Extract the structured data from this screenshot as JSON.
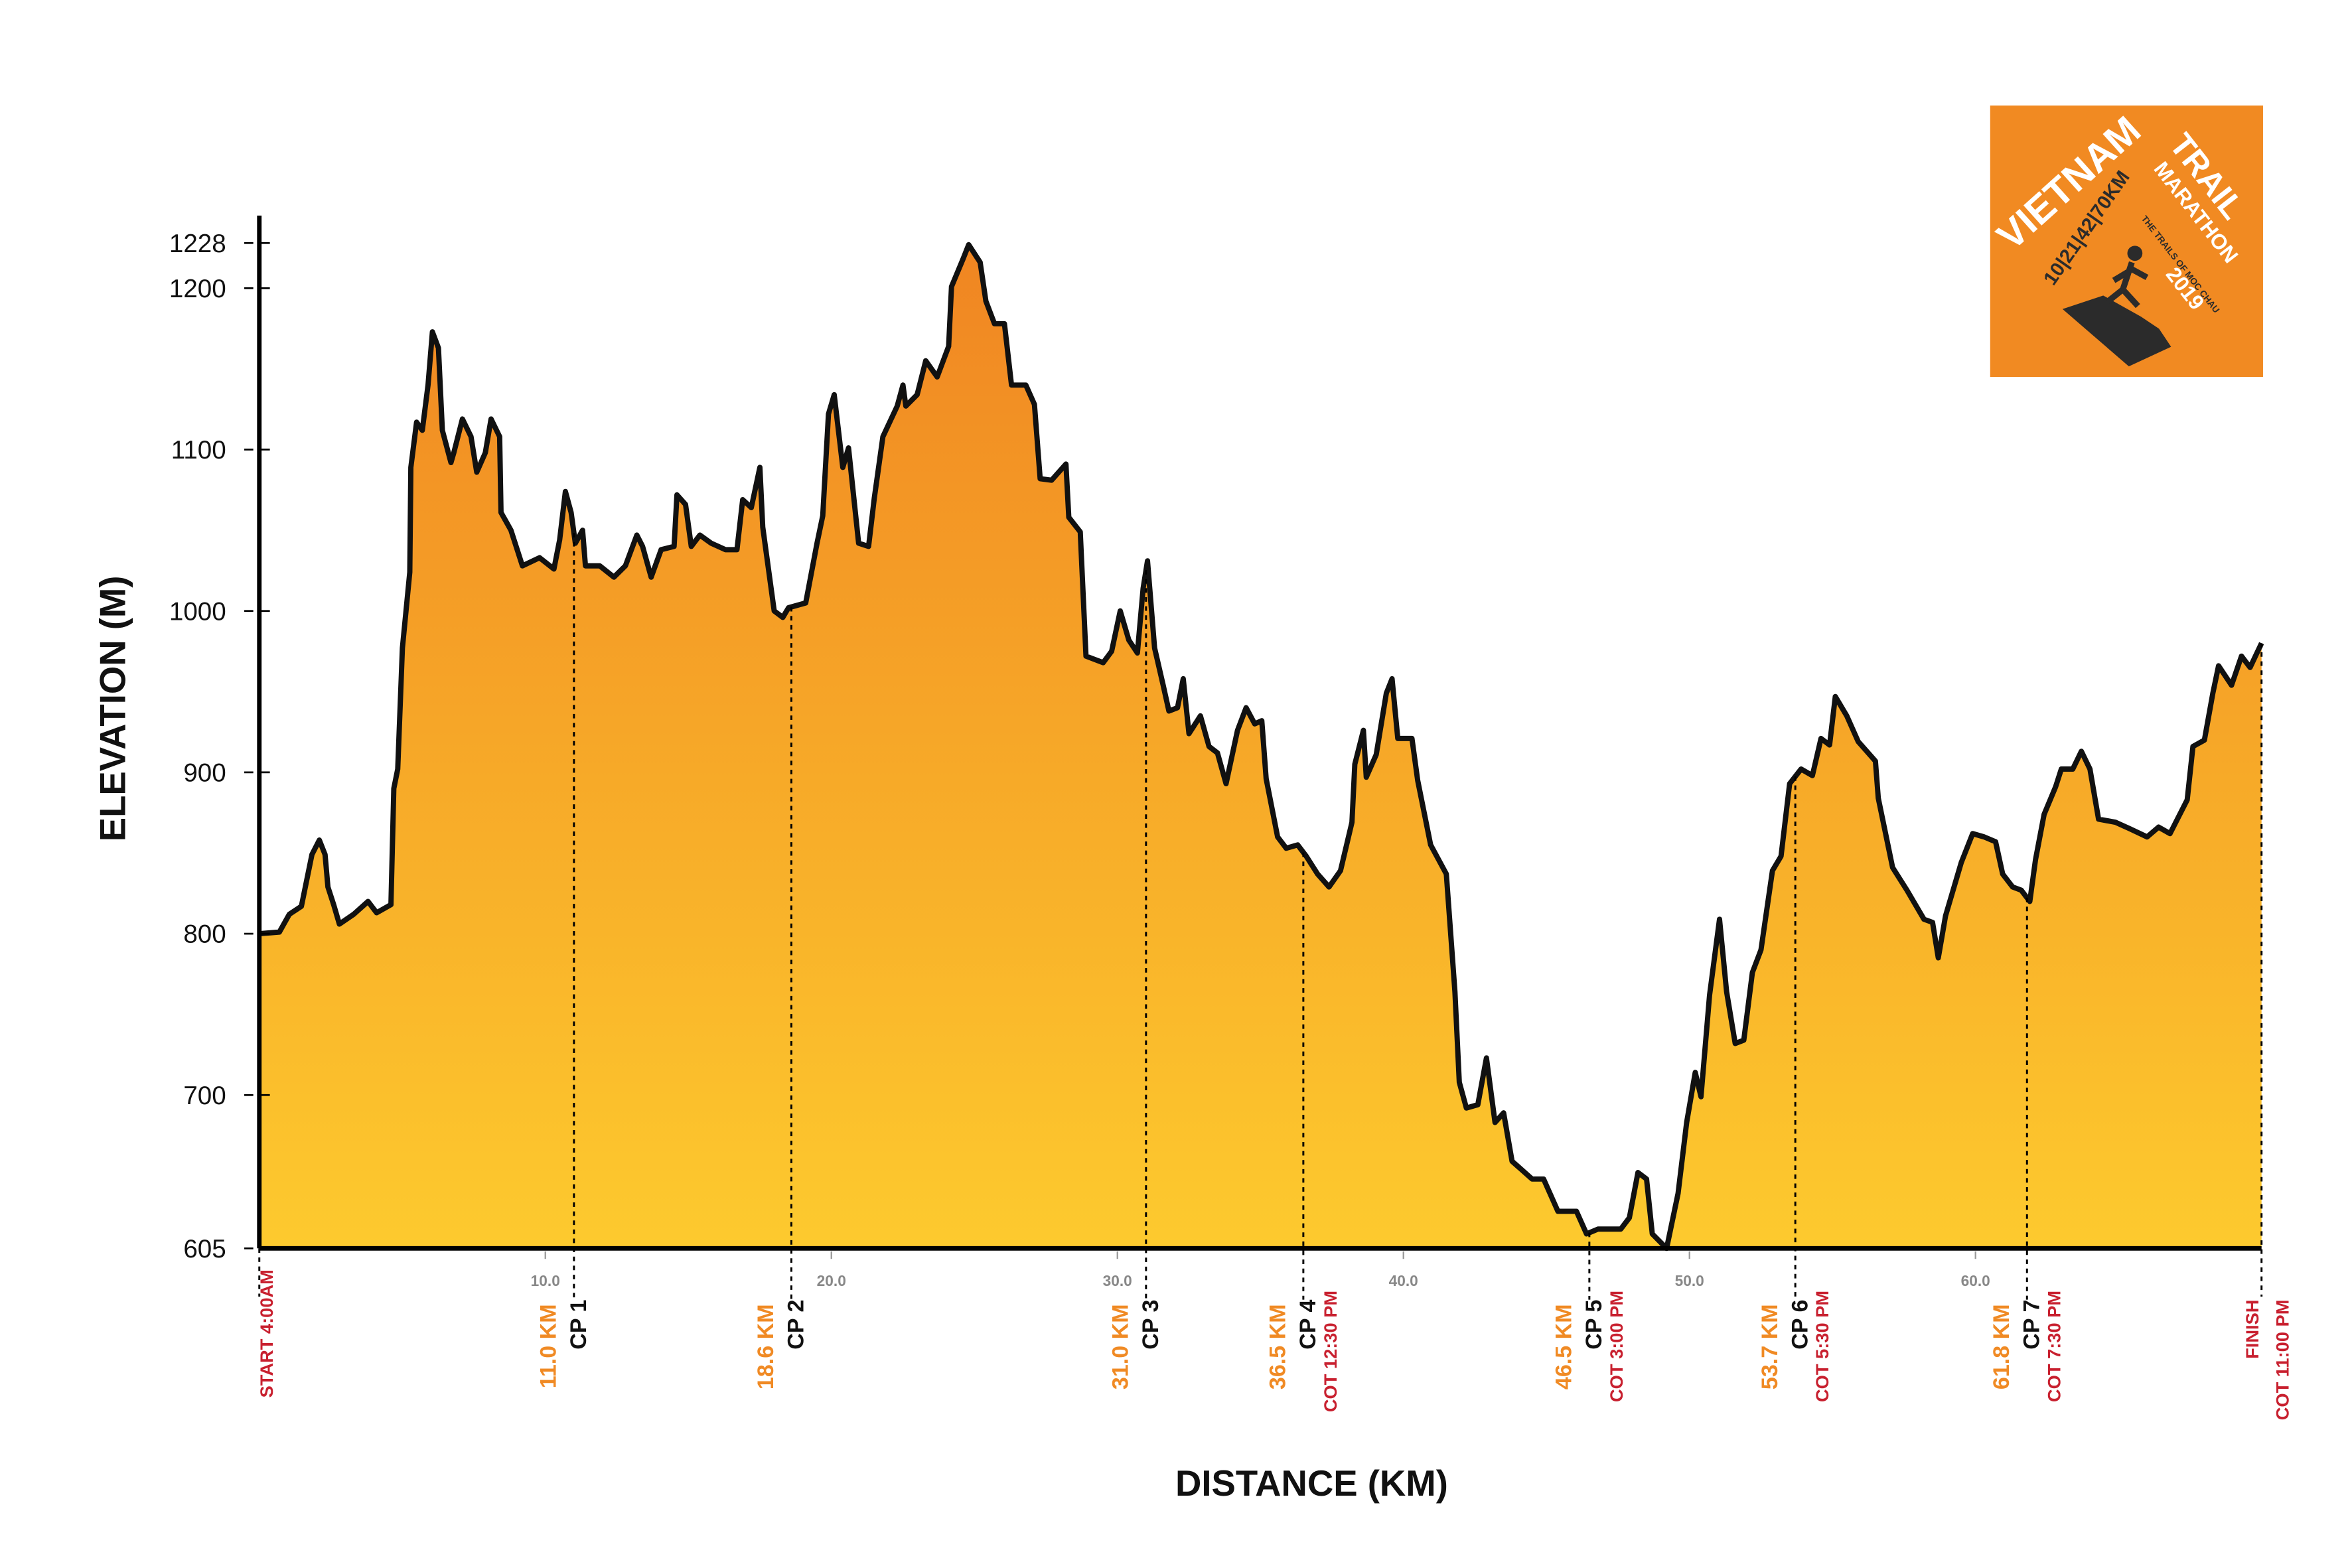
{
  "chart_data": {
    "type": "area",
    "x_label": "DISTANCE (KM)",
    "y_label": "ELEVATION (M)",
    "x": [
      0,
      0.7,
      1.05,
      1.47,
      1.84,
      2.1,
      2.3,
      2.4,
      2.6,
      2.8,
      3.3,
      3.8,
      4.1,
      4.6,
      4.7,
      4.84,
      5.0,
      5.26,
      5.3,
      5.5,
      5.7,
      5.9,
      6.05,
      6.26,
      6.4,
      6.7,
      6.8,
      7.1,
      7.4,
      7.6,
      7.9,
      8.1,
      8.4,
      8.45,
      8.8,
      9.2,
      9.8,
      10.3,
      10.5,
      10.7,
      10.9,
      11.05,
      11.3,
      11.4,
      11.9,
      12.4,
      12.8,
      13.2,
      13.4,
      13.7,
      14.05,
      14.5,
      14.6,
      14.9,
      15.1,
      15.4,
      15.8,
      16.3,
      16.7,
      16.9,
      17.2,
      17.5,
      17.6,
      18.0,
      18.3,
      18.5,
      19.1,
      19.5,
      19.7,
      19.9,
      20.1,
      20.4,
      20.6,
      20.95,
      21.3,
      21.5,
      21.8,
      22.3,
      22.5,
      22.6,
      23.0,
      23.3,
      23.7,
      24.1,
      24.2,
      24.6,
      24.8,
      25.2,
      25.4,
      25.7,
      26.05,
      26.3,
      26.8,
      27.1,
      27.3,
      27.7,
      28.2,
      28.3,
      28.7,
      28.9,
      29.5,
      29.8,
      30.1,
      30.4,
      30.7,
      30.9,
      31.05,
      31.3,
      31.6,
      31.8,
      32.1,
      32.3,
      32.5,
      32.9,
      33.2,
      33.5,
      33.8,
      34.2,
      34.5,
      34.8,
      35.05,
      35.2,
      35.6,
      35.9,
      36.3,
      36.6,
      37.0,
      37.4,
      37.8,
      38.2,
      38.3,
      38.6,
      38.7,
      39.05,
      39.4,
      39.6,
      39.8,
      40.3,
      40.5,
      40.95,
      41.5,
      41.8,
      41.95,
      42.2,
      42.6,
      42.9,
      43.2,
      43.5,
      43.8,
      44.5,
      44.9,
      45.4,
      46.05,
      46.4,
      46.8,
      47.6,
      47.9,
      48.2,
      48.5,
      48.7,
      49.2,
      49.6,
      49.9,
      50.2,
      50.4,
      50.7,
      51.05,
      51.3,
      51.6,
      51.9,
      52.2,
      52.5,
      52.9,
      53.2,
      53.5,
      53.9,
      54.3,
      54.6,
      54.9,
      55.1,
      55.5,
      55.9,
      56.5,
      56.6,
      57.1,
      57.6,
      58.2,
      58.5,
      58.7,
      58.95,
      59.5,
      59.9,
      60.3,
      60.7,
      60.95,
      61.3,
      61.6,
      61.9,
      62.1,
      62.4,
      62.8,
      63.0,
      63.4,
      63.7,
      64.0,
      64.3,
      64.9,
      65.4,
      66.0,
      66.4,
      66.8,
      67.4,
      67.6,
      68.0,
      68.3,
      68.5,
      68.95,
      69.3,
      69.6,
      70
    ],
    "values": [
      800,
      801,
      812,
      817,
      849,
      858,
      849,
      829,
      818,
      806,
      812,
      820,
      813,
      818,
      890,
      902,
      977,
      1024,
      1089,
      1117,
      1112,
      1140,
      1173,
      1163,
      1112,
      1092,
      1098,
      1119,
      1108,
      1086,
      1098,
      1119,
      1108,
      1061,
      1050,
      1028,
      1033,
      1026,
      1044,
      1074,
      1061,
      1042,
      1050,
      1028,
      1028,
      1021,
      1028,
      1047,
      1040,
      1021,
      1038,
      1040,
      1072,
      1066,
      1040,
      1047,
      1042,
      1038,
      1038,
      1069,
      1064,
      1089,
      1052,
      1000,
      996,
      1002,
      1005,
      1042,
      1059,
      1122,
      1134,
      1089,
      1101,
      1042,
      1040,
      1070,
      1108,
      1127,
      1140,
      1127,
      1134,
      1155,
      1145,
      1164,
      1201,
      1218,
      1227,
      1216,
      1192,
      1178,
      1178,
      1140,
      1140,
      1128,
      1082,
      1081,
      1091,
      1058,
      1049,
      972,
      968,
      975,
      1000,
      982,
      974,
      1014,
      1031,
      977,
      954,
      938,
      940,
      958,
      924,
      935,
      916,
      912,
      893,
      926,
      940,
      930,
      932,
      896,
      860,
      853,
      855,
      848,
      837,
      829,
      839,
      869,
      905,
      926,
      897,
      911,
      949,
      958,
      921,
      921,
      895,
      855,
      837,
      764,
      708,
      692,
      694,
      723,
      683,
      689,
      659,
      648,
      648,
      628,
      628,
      614,
      617,
      617,
      624,
      652,
      648,
      614,
      605,
      639,
      683,
      714,
      699,
      762,
      809,
      764,
      732,
      734,
      776,
      790,
      839,
      848,
      893,
      902,
      898,
      921,
      917,
      947,
      935,
      919,
      907,
      884,
      841,
      827,
      809,
      807,
      785,
      811,
      844,
      862,
      860,
      857,
      837,
      829,
      827,
      820,
      846,
      874,
      891,
      902,
      902,
      913,
      902,
      871,
      869,
      865,
      860,
      866,
      862,
      883,
      916,
      920,
      949,
      966,
      954,
      972,
      965,
      980
    ],
    "color": "#111111",
    "fill_gradient": [
      "#f08522",
      "#fdca2e"
    ],
    "xlim": [
      0,
      70
    ],
    "ylim": [
      605,
      1245
    ],
    "xticks": [
      {
        "value": 10,
        "label": "10.0"
      },
      {
        "value": 20,
        "label": "20.0"
      },
      {
        "value": 30,
        "label": "30.0"
      },
      {
        "value": 40,
        "label": "40.0"
      },
      {
        "value": 50,
        "label": "50.0"
      },
      {
        "value": 60,
        "label": "60.0"
      }
    ],
    "yticks": [
      605,
      700,
      800,
      900,
      1000,
      1100,
      1200,
      1228
    ],
    "start": {
      "label": "START 4:00AM"
    },
    "finish": {
      "label": "FINISH",
      "cutoff": "COT 11:00 PM"
    },
    "checkpoints": [
      {
        "distance": {
          "value": 11.0,
          "label": "11.0 KM"
        },
        "name": "CP 1"
      },
      {
        "distance": {
          "value": 18.6,
          "label": "18.6 KM"
        },
        "name": "CP 2"
      },
      {
        "distance": {
          "value": 31.0,
          "label": "31.0 KM"
        },
        "name": "CP 3"
      },
      {
        "distance": {
          "value": 36.5,
          "label": "36.5 KM"
        },
        "name": "CP 4",
        "cutoff": "COT 12:30 PM"
      },
      {
        "distance": {
          "value": 46.5,
          "label": "46.5 KM"
        },
        "name": "CP 5",
        "cutoff": "COT 3:00 PM"
      },
      {
        "distance": {
          "value": 53.7,
          "label": "53.7 KM"
        },
        "name": "CP 6",
        "cutoff": "COT 5:30 PM"
      },
      {
        "distance": {
          "value": 61.8,
          "label": "61.8 KM"
        },
        "name": "CP 7",
        "cutoff": "COT 7:30 PM"
      }
    ]
  },
  "logo": {
    "title_1": "VIETNAM",
    "title_2": "TRAIL",
    "title_3": "MARATHON",
    "distances": "10|21|42|70KM",
    "tagline": "THE TRAILS OF MOC CHAU",
    "year": "2019"
  }
}
